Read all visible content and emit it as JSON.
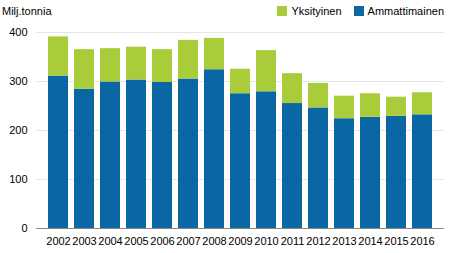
{
  "chart_data": {
    "type": "bar",
    "stacked": true,
    "ylabel": "Milj.tonnia",
    "categories": [
      "2002",
      "2003",
      "2004",
      "2005",
      "2006",
      "2007",
      "2008",
      "2009",
      "2010",
      "2011",
      "2012",
      "2013",
      "2014",
      "2015",
      "2016"
    ],
    "series": [
      {
        "name": "Ammattimainen",
        "color": "#0a67a3",
        "values": [
          311,
          284,
          299,
          303,
          298,
          305,
          324,
          275,
          279,
          255,
          246,
          224,
          227,
          229,
          232
        ]
      },
      {
        "name": "Yksityinen",
        "color": "#a8cc3a",
        "values": [
          80,
          81,
          68,
          67,
          67,
          79,
          64,
          50,
          84,
          61,
          50,
          46,
          48,
          39,
          45
        ]
      }
    ],
    "ylim": [
      0,
      400
    ],
    "yticks": [
      0,
      100,
      200,
      300,
      400
    ],
    "grid": true,
    "legend": "top-right"
  }
}
